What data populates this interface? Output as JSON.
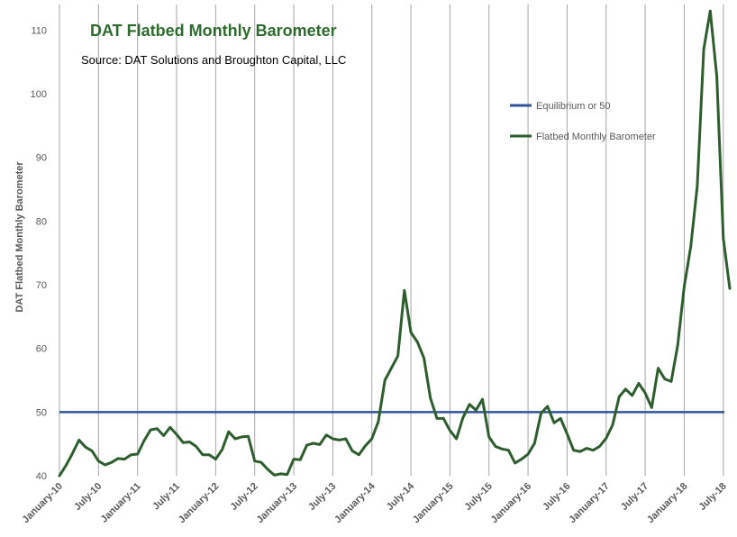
{
  "chart_data": {
    "type": "line",
    "title": "DAT Flatbed Monthly Barometer",
    "subtitle": "Source: DAT Solutions and Broughton Capital, LLC",
    "ylabel": "DAT Flatbed Monthly Barometer",
    "xlabel": "",
    "ylim": [
      40,
      114
    ],
    "yticks": [
      40,
      50,
      60,
      70,
      80,
      90,
      100,
      110
    ],
    "xtick_labels": [
      "January-10",
      "July-10",
      "January-11",
      "July-11",
      "January-12",
      "July-12",
      "January-13",
      "July-13",
      "January-14",
      "July-14",
      "January-15",
      "July-15",
      "January-16",
      "July-16",
      "January-17",
      "July-17",
      "January-18",
      "July-18"
    ],
    "grid": "vertical",
    "legend_position": "top-right",
    "series": [
      {
        "name": "Equilibrium or 50",
        "color": "#2f5597",
        "values": [
          50,
          50
        ]
      },
      {
        "name": "Flatbed Monthly Barometer",
        "color": "#2e5e2e",
        "values": [
          40.0,
          41.6,
          43.5,
          45.6,
          44.5,
          43.9,
          42.3,
          41.7,
          42.1,
          42.7,
          42.6,
          43.3,
          43.4,
          45.5,
          47.2,
          47.4,
          46.3,
          47.6,
          46.5,
          45.2,
          45.3,
          44.6,
          43.3,
          43.3,
          42.6,
          44.1,
          46.9,
          45.8,
          46.1,
          46.2,
          42.3,
          42.1,
          41.0,
          40.1,
          40.3,
          40.2,
          42.6,
          42.5,
          44.8,
          45.1,
          44.9,
          46.4,
          45.8,
          45.6,
          45.8,
          43.9,
          43.3,
          44.7,
          45.8,
          48.5,
          55.0,
          56.9,
          58.8,
          69.1,
          62.5,
          61.0,
          58.5,
          52.2,
          49.0,
          49.0,
          47.1,
          45.8,
          49.1,
          51.2,
          50.3,
          52.0,
          46.1,
          44.6,
          44.2,
          44.0,
          42.0,
          42.6,
          43.4,
          45.1,
          49.8,
          50.9,
          48.3,
          49.0,
          46.6,
          44.0,
          43.8,
          44.3,
          44.0,
          44.6,
          45.9,
          48.0,
          52.4,
          53.6,
          52.6,
          54.5,
          53.0,
          50.7,
          56.9,
          55.2,
          54.8,
          60.5,
          69.7,
          76.0,
          85.5,
          107.0,
          113.0,
          102.7,
          77.3,
          69.4
        ]
      }
    ]
  },
  "colors": {
    "title": "#2e6b2e",
    "line": "#2e5e2e",
    "equilibrium": "#2f5597",
    "grid": "#a6a6a6"
  }
}
